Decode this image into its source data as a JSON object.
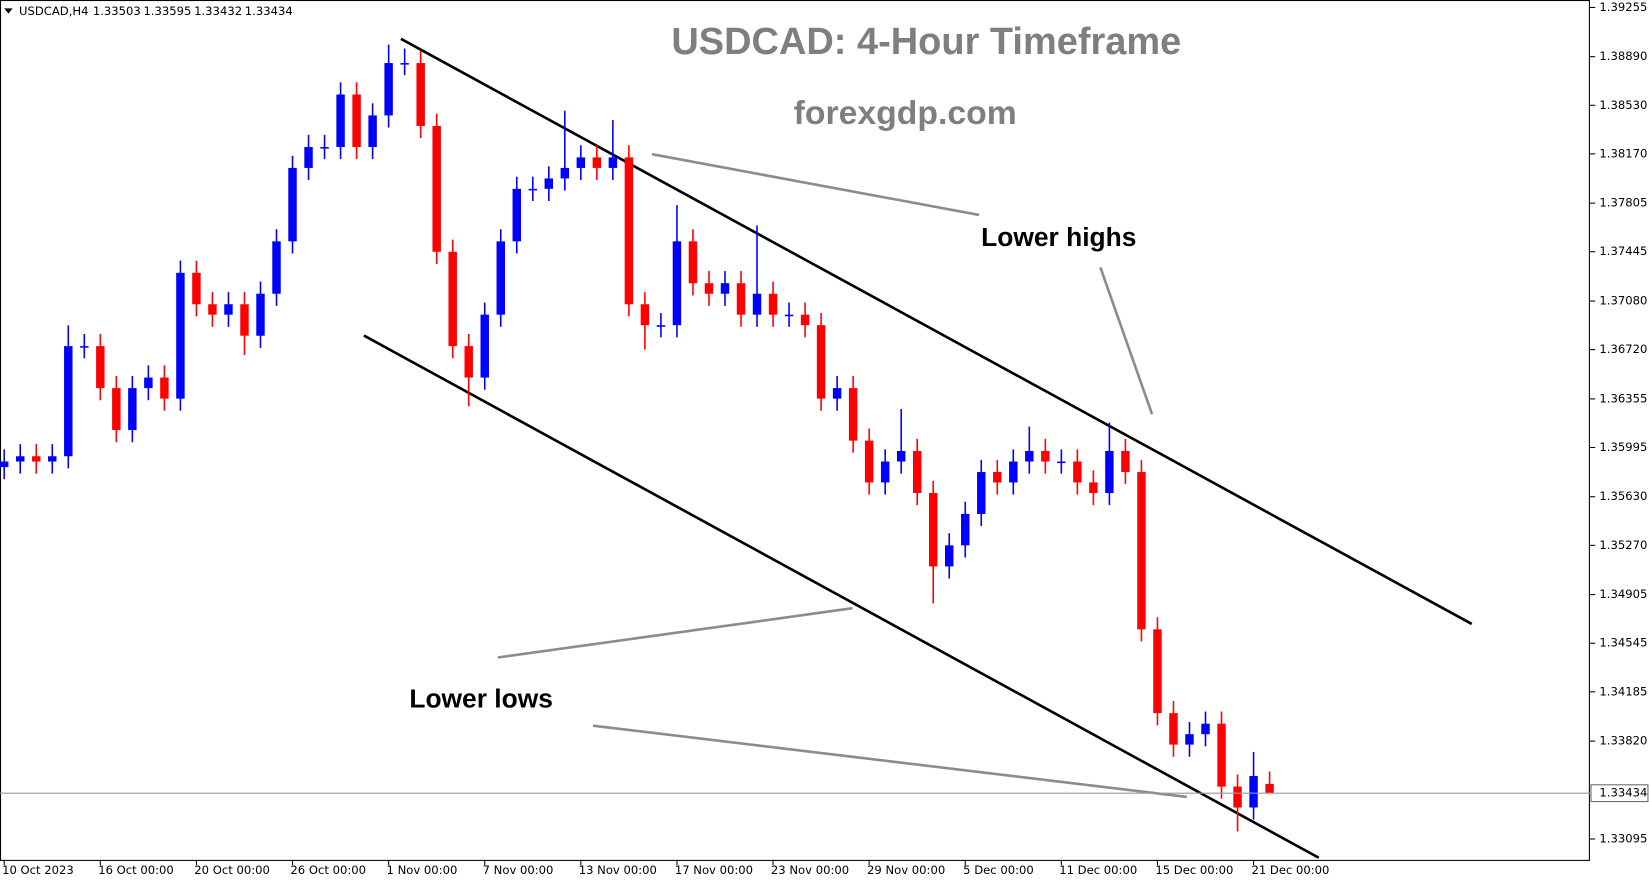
{
  "chart_data": {
    "type": "candlestick",
    "symbol": "USDCAD,H4",
    "header_values": [
      1.33503,
      1.33595,
      1.33432,
      1.33434
    ],
    "title": "USDCAD: 4-Hour Timeframe",
    "subtitle": "forexgdp.com",
    "annotations": [
      "Lower highs",
      "Lower lows"
    ],
    "up_color": "#0000ff",
    "down_color": "#ff0000",
    "current_price": 1.33434,
    "open": [
      1.3585,
      1.35891,
      1.3593,
      1.35891,
      1.3593,
      1.36746,
      1.36746,
      1.36435,
      1.36124,
      1.36435,
      1.36513,
      1.36357,
      1.37289,
      1.37056,
      1.36979,
      1.37056,
      1.36823,
      1.37134,
      1.37522,
      1.38066,
      1.38221,
      1.38221,
      1.3861,
      1.38221,
      1.38455,
      1.38843,
      1.38843,
      1.38377,
      1.37445,
      1.36746,
      1.36513,
      1.36979,
      1.37522,
      1.37911,
      1.37911,
      1.37988,
      1.38066,
      1.38144,
      1.38066,
      1.38144,
      1.37056,
      1.36901,
      1.36901,
      1.37522,
      1.37212,
      1.37134,
      1.37212,
      1.36979,
      1.37134,
      1.36979,
      1.36979,
      1.36901,
      1.36357,
      1.36435,
      1.36046,
      1.35736,
      1.35891,
      1.35969,
      1.35658,
      1.35114,
      1.3527,
      1.35503,
      1.35813,
      1.35736,
      1.35891,
      1.35969,
      1.35891,
      1.35891,
      1.35736,
      1.35658,
      1.35969,
      1.35813,
      1.34648,
      1.34027,
      1.33794,
      1.33871,
      1.33949,
      1.33483,
      1.33328,
      1.33503
    ],
    "high": [
      1.35981,
      1.3602,
      1.3602,
      1.3602,
      1.369,
      1.36836,
      1.36836,
      1.36525,
      1.36525,
      1.36603,
      1.36603,
      1.37379,
      1.37379,
      1.37146,
      1.37146,
      1.37146,
      1.37224,
      1.37612,
      1.38156,
      1.38311,
      1.38311,
      1.387,
      1.387,
      1.38545,
      1.3898,
      1.3895,
      1.38933,
      1.38467,
      1.37535,
      1.36836,
      1.37069,
      1.37612,
      1.38001,
      1.38001,
      1.38078,
      1.3849,
      1.38234,
      1.38234,
      1.3842,
      1.38234,
      1.37146,
      1.36991,
      1.3779,
      1.37612,
      1.37302,
      1.37302,
      1.37302,
      1.3764,
      1.37224,
      1.37069,
      1.37069,
      1.36991,
      1.36525,
      1.36525,
      1.36136,
      1.35981,
      1.3628,
      1.36059,
      1.35748,
      1.3536,
      1.35593,
      1.35903,
      1.35903,
      1.35981,
      1.3615,
      1.36059,
      1.35981,
      1.35981,
      1.35826,
      1.3618,
      1.36059,
      1.35903,
      1.34738,
      1.34117,
      1.33961,
      1.34039,
      1.34039,
      1.33573,
      1.3374,
      1.33595
    ],
    "low": [
      1.3576,
      1.35801,
      1.35801,
      1.35801,
      1.3584,
      1.36656,
      1.36345,
      1.36034,
      1.36034,
      1.36345,
      1.36267,
      1.36267,
      1.36966,
      1.36889,
      1.36889,
      1.3668,
      1.36733,
      1.37044,
      1.37432,
      1.37976,
      1.38131,
      1.38131,
      1.38131,
      1.38131,
      1.38365,
      1.38753,
      1.38287,
      1.37355,
      1.36656,
      1.363,
      1.36423,
      1.36889,
      1.37432,
      1.37821,
      1.37821,
      1.37898,
      1.37976,
      1.37976,
      1.37976,
      1.36966,
      1.3672,
      1.36811,
      1.36811,
      1.37122,
      1.37044,
      1.37044,
      1.36889,
      1.36889,
      1.36889,
      1.36889,
      1.36811,
      1.36267,
      1.36267,
      1.35956,
      1.35646,
      1.35646,
      1.35801,
      1.35568,
      1.3484,
      1.35024,
      1.3518,
      1.35413,
      1.35646,
      1.35646,
      1.35801,
      1.35801,
      1.35801,
      1.35646,
      1.35568,
      1.35568,
      1.35723,
      1.34558,
      1.33937,
      1.33704,
      1.33704,
      1.33781,
      1.33393,
      1.3315,
      1.33238,
      1.33432
    ],
    "close": [
      1.35891,
      1.3593,
      1.35891,
      1.3593,
      1.36746,
      1.36746,
      1.36435,
      1.36124,
      1.36435,
      1.36513,
      1.36357,
      1.37289,
      1.37056,
      1.36979,
      1.37056,
      1.36823,
      1.37134,
      1.37522,
      1.38066,
      1.38221,
      1.38221,
      1.3861,
      1.38221,
      1.38455,
      1.38843,
      1.38843,
      1.38377,
      1.37445,
      1.36746,
      1.36513,
      1.36979,
      1.37522,
      1.37911,
      1.37911,
      1.37988,
      1.38066,
      1.38144,
      1.38066,
      1.38144,
      1.37056,
      1.36901,
      1.36901,
      1.37522,
      1.37212,
      1.37134,
      1.37212,
      1.36979,
      1.37134,
      1.36979,
      1.36979,
      1.36901,
      1.36357,
      1.36435,
      1.36046,
      1.35736,
      1.35891,
      1.35969,
      1.35658,
      1.35114,
      1.3527,
      1.35503,
      1.35813,
      1.35736,
      1.35891,
      1.35969,
      1.35891,
      1.35891,
      1.35736,
      1.35658,
      1.35969,
      1.35813,
      1.34648,
      1.34027,
      1.33794,
      1.33871,
      1.33949,
      1.33483,
      1.33328,
      1.33561,
      1.33434
    ],
    "xlim": [
      0,
      99
    ],
    "xticks": [
      {
        "value": 0,
        "label": "10 Oct 2023"
      },
      {
        "value": 6,
        "label": "16 Oct 00:00"
      },
      {
        "value": 12,
        "label": "20 Oct 00:00"
      },
      {
        "value": 18,
        "label": "26 Oct 00:00"
      },
      {
        "value": 24,
        "label": "1 Nov 00:00"
      },
      {
        "value": 30,
        "label": "7 Nov 00:00"
      },
      {
        "value": 36,
        "label": "13 Nov 00:00"
      },
      {
        "value": 42,
        "label": "17 Nov 00:00"
      },
      {
        "value": 48,
        "label": "23 Nov 00:00"
      },
      {
        "value": 54,
        "label": "29 Nov 00:00"
      },
      {
        "value": 60,
        "label": "5 Dec 00:00"
      },
      {
        "value": 66,
        "label": "11 Dec 00:00"
      },
      {
        "value": 72,
        "label": "15 Dec 00:00"
      },
      {
        "value": 78,
        "label": "21 Dec 00:00"
      }
    ],
    "ylim": [
      1.3294,
      1.3931
    ],
    "yticks": [
      1.39255,
      {
        "value": 1.3889,
        "label": "1.38890"
      },
      {
        "value": 1.3853,
        "label": "1.38530"
      },
      {
        "value": 1.3817,
        "label": "1.38170"
      },
      1.37805,
      1.37445,
      {
        "value": 1.3708,
        "label": "1.37080"
      },
      {
        "value": 1.3672,
        "label": "1.36720"
      },
      1.36355,
      1.35995,
      {
        "value": 1.3563,
        "label": "1.35630"
      },
      {
        "value": 1.3527,
        "label": "1.35270"
      },
      1.34905,
      1.34545,
      1.34185,
      {
        "value": 1.3382,
        "label": "1.33820"
      },
      1.33095
    ],
    "grid": false
  }
}
